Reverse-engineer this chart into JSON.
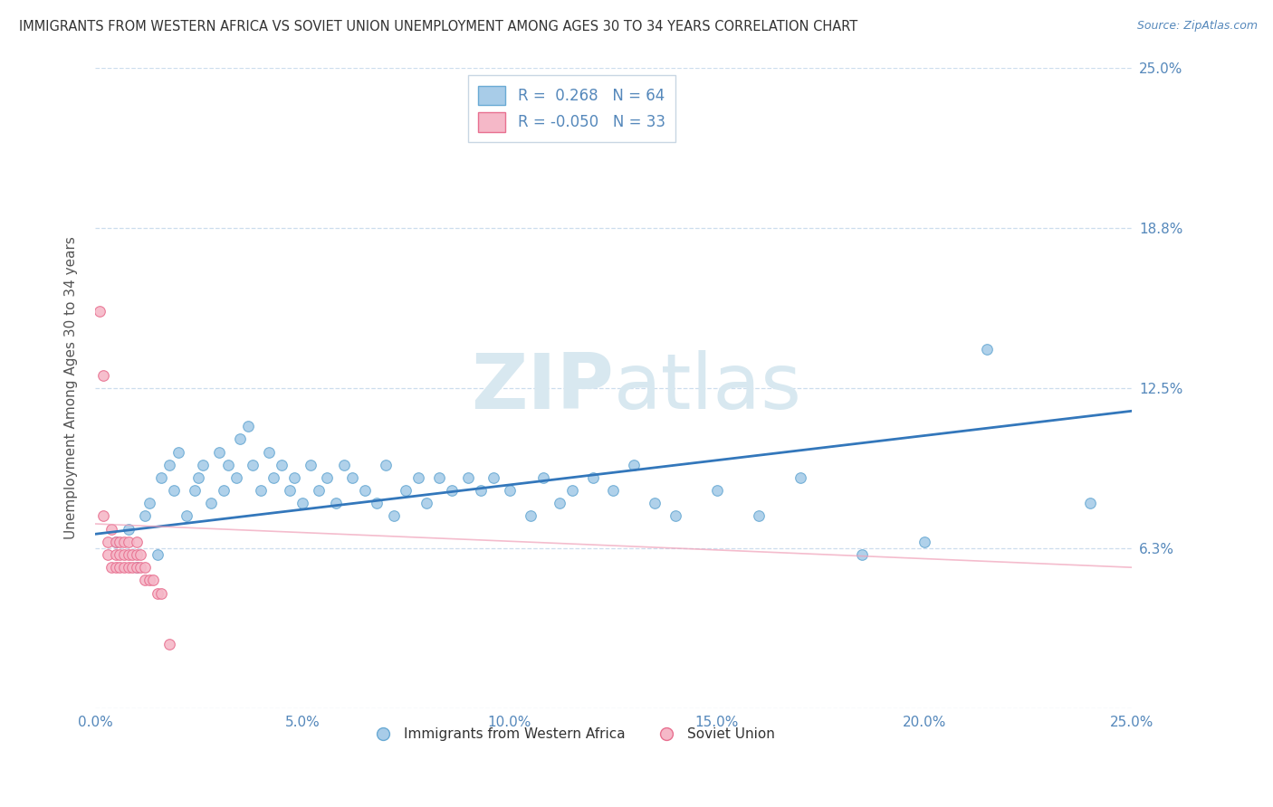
{
  "title": "IMMIGRANTS FROM WESTERN AFRICA VS SOVIET UNION UNEMPLOYMENT AMONG AGES 30 TO 34 YEARS CORRELATION CHART",
  "source": "Source: ZipAtlas.com",
  "ylabel": "Unemployment Among Ages 30 to 34 years",
  "xlim": [
    0,
    0.25
  ],
  "ylim": [
    0,
    0.25
  ],
  "xtick_vals": [
    0.0,
    0.05,
    0.1,
    0.15,
    0.2,
    0.25
  ],
  "ytick_vals": [
    0.0,
    0.0625,
    0.125,
    0.1875,
    0.25
  ],
  "ytick_labels": [
    "",
    "6.3%",
    "12.5%",
    "18.8%",
    "25.0%"
  ],
  "xtick_labels": [
    "0.0%",
    "5.0%",
    "10.0%",
    "15.0%",
    "20.0%",
    "25.0%"
  ],
  "blue_R": 0.268,
  "blue_N": 64,
  "pink_R": -0.05,
  "pink_N": 33,
  "blue_color": "#a8cce8",
  "blue_edge": "#6aaad4",
  "pink_color": "#f5b8c8",
  "pink_edge": "#e87090",
  "trend_blue_color": "#3377bb",
  "trend_pink_color": "#f0a0b8",
  "tick_color": "#5588bb",
  "label_color": "#555555",
  "grid_color": "#ccddee",
  "watermark_color": "#d8e8f0",
  "legend_label_blue": "Immigrants from Western Africa",
  "legend_label_pink": "Soviet Union",
  "blue_x": [
    0.005,
    0.008,
    0.01,
    0.012,
    0.013,
    0.015,
    0.016,
    0.018,
    0.019,
    0.02,
    0.022,
    0.024,
    0.025,
    0.026,
    0.028,
    0.03,
    0.031,
    0.032,
    0.034,
    0.035,
    0.037,
    0.038,
    0.04,
    0.042,
    0.043,
    0.045,
    0.047,
    0.048,
    0.05,
    0.052,
    0.054,
    0.056,
    0.058,
    0.06,
    0.062,
    0.065,
    0.068,
    0.07,
    0.072,
    0.075,
    0.078,
    0.08,
    0.083,
    0.086,
    0.09,
    0.093,
    0.096,
    0.1,
    0.105,
    0.108,
    0.112,
    0.115,
    0.12,
    0.125,
    0.13,
    0.135,
    0.14,
    0.15,
    0.16,
    0.17,
    0.185,
    0.2,
    0.215,
    0.24
  ],
  "blue_y": [
    0.065,
    0.07,
    0.055,
    0.075,
    0.08,
    0.06,
    0.09,
    0.095,
    0.085,
    0.1,
    0.075,
    0.085,
    0.09,
    0.095,
    0.08,
    0.1,
    0.085,
    0.095,
    0.09,
    0.105,
    0.11,
    0.095,
    0.085,
    0.1,
    0.09,
    0.095,
    0.085,
    0.09,
    0.08,
    0.095,
    0.085,
    0.09,
    0.08,
    0.095,
    0.09,
    0.085,
    0.08,
    0.095,
    0.075,
    0.085,
    0.09,
    0.08,
    0.09,
    0.085,
    0.09,
    0.085,
    0.09,
    0.085,
    0.075,
    0.09,
    0.08,
    0.085,
    0.09,
    0.085,
    0.095,
    0.08,
    0.075,
    0.085,
    0.075,
    0.09,
    0.06,
    0.065,
    0.14,
    0.08
  ],
  "pink_x": [
    0.001,
    0.002,
    0.002,
    0.003,
    0.003,
    0.004,
    0.004,
    0.005,
    0.005,
    0.005,
    0.006,
    0.006,
    0.006,
    0.007,
    0.007,
    0.007,
    0.008,
    0.008,
    0.008,
    0.009,
    0.009,
    0.01,
    0.01,
    0.01,
    0.011,
    0.011,
    0.012,
    0.012,
    0.013,
    0.014,
    0.015,
    0.016,
    0.018
  ],
  "pink_y": [
    0.155,
    0.13,
    0.075,
    0.06,
    0.065,
    0.055,
    0.07,
    0.06,
    0.065,
    0.055,
    0.06,
    0.055,
    0.065,
    0.06,
    0.055,
    0.065,
    0.055,
    0.06,
    0.065,
    0.055,
    0.06,
    0.055,
    0.06,
    0.065,
    0.055,
    0.06,
    0.055,
    0.05,
    0.05,
    0.05,
    0.045,
    0.045,
    0.025
  ],
  "blue_trend_x": [
    0.0,
    0.25
  ],
  "blue_trend_y": [
    0.068,
    0.116
  ],
  "pink_trend_x": [
    0.0,
    0.25
  ],
  "pink_trend_y": [
    0.072,
    0.055
  ]
}
